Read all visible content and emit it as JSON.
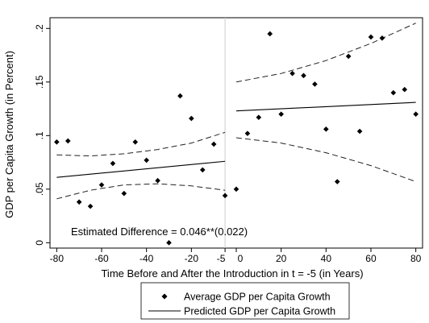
{
  "chart_data": {
    "type": "scatter",
    "title": "",
    "xlabel": "Time Before and After the Introduction in t = -5 (in Years)",
    "ylabel": "GDP per Capita Growth (in Percent)",
    "xlim": [
      -83,
      83
    ],
    "ylim": [
      -0.005,
      0.21
    ],
    "x_ticks": [
      -80,
      -60,
      -40,
      -20,
      -5,
      0,
      20,
      40,
      60,
      80
    ],
    "x_tick_labels": [
      "-80",
      "-60",
      "-40",
      "-20",
      "-5",
      "0",
      "20",
      "40",
      "60",
      "80"
    ],
    "y_ticks": [
      0,
      0.05,
      0.1,
      0.15,
      0.2
    ],
    "y_tick_labels": [
      "0",
      ".05",
      ".1",
      ".15",
      ".2"
    ],
    "cutoff_x": -5,
    "annotation": "Estimated Difference = 0.046**(0.022)",
    "legend_position": "bottom",
    "series": [
      {
        "name": "Average GDP per Capita Growth",
        "kind": "scatter",
        "points": [
          [
            -80,
            0.094
          ],
          [
            -75,
            0.095
          ],
          [
            -70,
            0.038
          ],
          [
            -65,
            0.034
          ],
          [
            -60,
            0.054
          ],
          [
            -55,
            0.074
          ],
          [
            -50,
            0.046
          ],
          [
            -45,
            0.094
          ],
          [
            -40,
            0.077
          ],
          [
            -35,
            0.058
          ],
          [
            -30,
            0.0
          ],
          [
            -25,
            0.137
          ],
          [
            -20,
            0.116
          ],
          [
            -15,
            0.068
          ],
          [
            -10,
            0.092
          ],
          [
            -5,
            0.044
          ],
          [
            0,
            0.05
          ],
          [
            5,
            0.102
          ],
          [
            10,
            0.117
          ],
          [
            15,
            0.195
          ],
          [
            20,
            0.12
          ],
          [
            25,
            0.158
          ],
          [
            30,
            0.156
          ],
          [
            35,
            0.148
          ],
          [
            40,
            0.106
          ],
          [
            45,
            0.057
          ],
          [
            50,
            0.174
          ],
          [
            55,
            0.104
          ],
          [
            60,
            0.192
          ],
          [
            65,
            0.191
          ],
          [
            70,
            0.14
          ],
          [
            75,
            0.143
          ],
          [
            80,
            0.12
          ]
        ]
      },
      {
        "name": "Predicted GDP per Capita Growth",
        "kind": "line",
        "segments": [
          [
            [
              -80,
              0.061
            ],
            [
              -5,
              0.076
            ]
          ],
          [
            [
              0,
              0.123
            ],
            [
              80,
              0.131
            ]
          ]
        ]
      },
      {
        "kind": "confidence-band",
        "segments": [
          {
            "upper": [
              [
                -80,
                0.082
              ],
              [
                -65,
                0.081
              ],
              [
                -50,
                0.083
              ],
              [
                -35,
                0.087
              ],
              [
                -20,
                0.093
              ],
              [
                -5,
                0.103
              ]
            ],
            "lower": [
              [
                -80,
                0.041
              ],
              [
                -65,
                0.049
              ],
              [
                -50,
                0.054
              ],
              [
                -35,
                0.055
              ],
              [
                -20,
                0.053
              ],
              [
                -5,
                0.049
              ]
            ]
          },
          {
            "upper": [
              [
                0,
                0.15
              ],
              [
                20,
                0.158
              ],
              [
                40,
                0.17
              ],
              [
                60,
                0.186
              ],
              [
                80,
                0.205
              ]
            ],
            "lower": [
              [
                0,
                0.098
              ],
              [
                20,
                0.093
              ],
              [
                40,
                0.084
              ],
              [
                60,
                0.072
              ],
              [
                80,
                0.057
              ]
            ]
          }
        ]
      }
    ]
  },
  "legend": {
    "items": [
      {
        "label": "Average GDP per Capita Growth",
        "symbol": "diamond"
      },
      {
        "label": "Predicted GDP per Capita Growth",
        "symbol": "line"
      }
    ]
  },
  "colors": {
    "points": "#000000",
    "line": "#000000",
    "band": "#222222",
    "cutoff": "#cccccc",
    "frame": "#000000"
  }
}
